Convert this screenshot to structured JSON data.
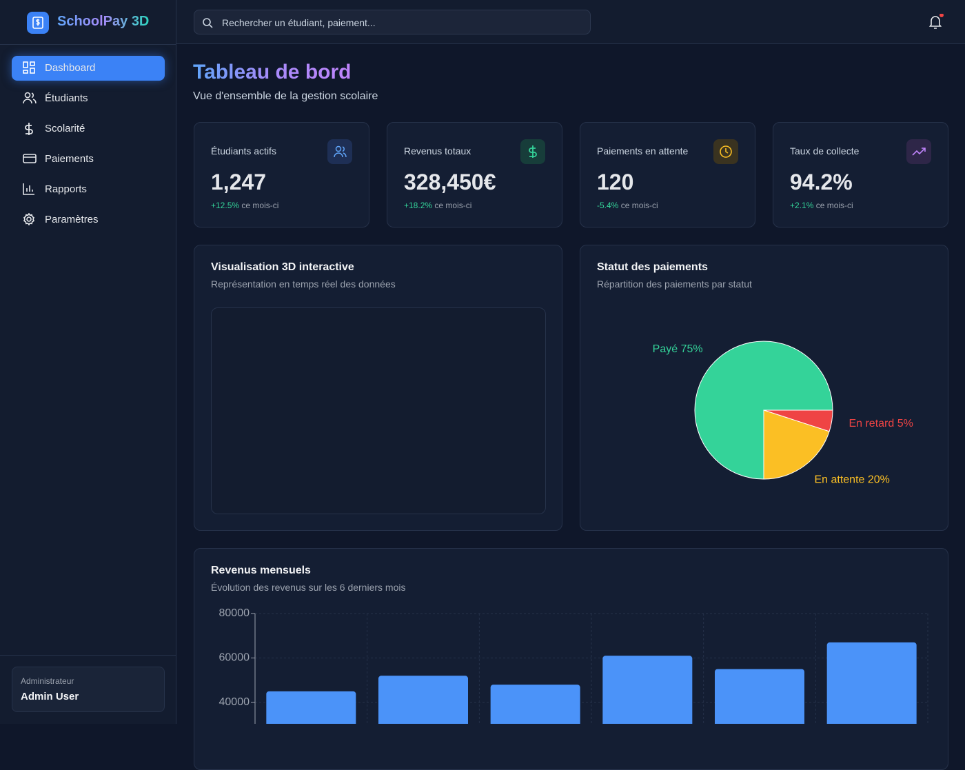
{
  "sidebar": {
    "brand": "SchoolPay 3D",
    "nav": [
      "Dashboard",
      "Étudiants",
      "Scolarité",
      "Paiements",
      "Rapports",
      "Paramètres"
    ],
    "user": {
      "role": "Administrateur",
      "name": "Admin User"
    }
  },
  "header": {
    "search_placeholder": "Rechercher un étudiant, paiement..."
  },
  "page": {
    "title": "Tableau de bord",
    "subtitle": "Vue d'ensemble de la gestion scolaire"
  },
  "stats": [
    {
      "label": "Étudiants actifs",
      "value": "1,247",
      "change": "+12.5%",
      "period": "ce mois-ci"
    },
    {
      "label": "Revenus totaux",
      "value": "328,450€",
      "change": "+18.2%",
      "period": "ce mois-ci"
    },
    {
      "label": "Paiements en attente",
      "value": "120",
      "change": "-5.4%",
      "period": "ce mois-ci"
    },
    {
      "label": "Taux de collecte",
      "value": "94.2%",
      "change": "+2.1%",
      "period": "ce mois-ci"
    }
  ],
  "visualization": {
    "title": "Visualisation 3D interactive",
    "subtitle": "Représentation en temps réel des données"
  },
  "chart_data": [
    {
      "type": "pie",
      "title": "Statut des paiements",
      "subtitle": "Répartition des paiements par statut",
      "categories": [
        "Payé",
        "En retard",
        "En attente"
      ],
      "values": [
        75,
        5,
        20
      ],
      "value_labels": [
        "Payé 75%",
        "En retard 5%",
        "En attente 20%"
      ],
      "colors": [
        "#34d399",
        "#ef4444",
        "#fbbf24"
      ]
    },
    {
      "type": "bar",
      "title": "Revenus mensuels",
      "subtitle": "Évolution des revenus sur les 6 derniers mois",
      "categories": [
        null,
        null,
        null,
        null,
        null,
        null
      ],
      "values": [
        45000,
        52000,
        48000,
        61000,
        55000,
        67000
      ],
      "color": "#4b93f9",
      "ylim": [
        0,
        80000
      ],
      "yticks": [
        40000,
        60000,
        80000
      ],
      "grid": true
    }
  ]
}
